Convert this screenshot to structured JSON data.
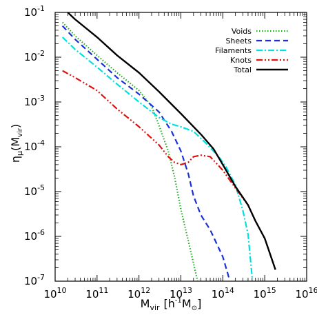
{
  "chart_data": {
    "type": "line",
    "x_scale": "log",
    "y_scale": "log",
    "xlim": [
      10000000000.0,
      1e+16
    ],
    "ylim": [
      1e-07,
      0.1
    ],
    "xlabel": {
      "main": "M",
      "sub": "vir",
      "bracket_open": "[h",
      "sup": "-1",
      "unit": "M",
      "unit_sub": "⊙",
      "bracket_close": "]"
    },
    "ylabel": {
      "main": "η",
      "sub": "μ",
      "paren_open": "(M",
      "paren_sub": "vir",
      "paren_close": ")"
    },
    "x_ticks": [
      {
        "value": 10000000000.0,
        "base": "10",
        "exp": "10"
      },
      {
        "value": 100000000000.0,
        "base": "10",
        "exp": "11"
      },
      {
        "value": 1000000000000.0,
        "base": "10",
        "exp": "12"
      },
      {
        "value": 10000000000000.0,
        "base": "10",
        "exp": "13"
      },
      {
        "value": 100000000000000.0,
        "base": "10",
        "exp": "14"
      },
      {
        "value": 1000000000000000.0,
        "base": "10",
        "exp": "15"
      },
      {
        "value": 1e+16,
        "base": "10",
        "exp": "16"
      }
    ],
    "y_ticks": [
      {
        "value": 1e-07,
        "base": "10",
        "exp": "-7"
      },
      {
        "value": 1e-06,
        "base": "10",
        "exp": "-6"
      },
      {
        "value": 1e-05,
        "base": "10",
        "exp": "-5"
      },
      {
        "value": 0.0001,
        "base": "10",
        "exp": "-4"
      },
      {
        "value": 0.001,
        "base": "10",
        "exp": "-3"
      },
      {
        "value": 0.01,
        "base": "10",
        "exp": "-2"
      },
      {
        "value": 0.1,
        "base": "10",
        "exp": "-1"
      }
    ],
    "grid": false,
    "legend_position": "top-right",
    "series": [
      {
        "name": "Voids",
        "color": "#22aa22",
        "dash": "dotted",
        "x": [
          15000000000.0,
          30000000000.0,
          100000000000.0,
          300000000000.0,
          1000000000000.0,
          2000000000000.0,
          3000000000000.0,
          5000000000000.0,
          7000000000000.0,
          10000000000000.0,
          15000000000000.0,
          20000000000000.0,
          25000000000000.0
        ],
        "y": [
          0.06,
          0.03,
          0.011,
          0.0045,
          0.0018,
          0.0008,
          0.0003,
          8e-05,
          2.2e-05,
          4e-06,
          8e-07,
          2.5e-07,
          1e-07
        ]
      },
      {
        "name": "Sheets",
        "color": "#1a2fd6",
        "dash": "dashed",
        "x": [
          15000000000.0,
          30000000000.0,
          100000000000.0,
          300000000000.0,
          1000000000000.0,
          3000000000000.0,
          6000000000000.0,
          10000000000000.0,
          15000000000000.0,
          20000000000000.0,
          30000000000000.0,
          50000000000000.0,
          100000000000000.0,
          140000000000000.0
        ],
        "y": [
          0.05,
          0.025,
          0.009,
          0.0035,
          0.0015,
          0.0006,
          0.00022,
          8e-05,
          2.5e-05,
          8e-06,
          3e-06,
          1.4e-06,
          3.5e-07,
          1.2e-07
        ]
      },
      {
        "name": "Filaments",
        "color": "#00e0e0",
        "dash": "dashdot",
        "x": [
          15000000000.0,
          30000000000.0,
          100000000000.0,
          300000000000.0,
          1000000000000.0,
          3000000000000.0,
          6000000000000.0,
          10000000000000.0,
          20000000000000.0,
          40000000000000.0,
          80000000000000.0,
          120000000000000.0,
          200000000000000.0,
          300000000000000.0,
          400000000000000.0,
          500000000000000.0
        ],
        "y": [
          0.028,
          0.015,
          0.006,
          0.0025,
          0.001,
          0.00045,
          0.00032,
          0.00028,
          0.00022,
          0.00012,
          6e-05,
          3.5e-05,
          1.4e-05,
          3.8e-06,
          1.1e-06,
          1.2e-07
        ]
      },
      {
        "name": "Knots",
        "color": "#e01010",
        "dash": "dashdotdot",
        "x": [
          15000000000.0,
          30000000000.0,
          100000000000.0,
          300000000000.0,
          1000000000000.0,
          3000000000000.0,
          5000000000000.0,
          7000000000000.0,
          10000000000000.0,
          15000000000000.0,
          20000000000000.0,
          30000000000000.0,
          50000000000000.0,
          100000000000000.0,
          200000000000000.0,
          400000000000000.0,
          600000000000000.0,
          1000000000000000.0,
          1800000000000000.0
        ],
        "y": [
          0.005,
          0.0035,
          0.0018,
          0.0007,
          0.00028,
          0.00011,
          6e-05,
          4.5e-05,
          4e-05,
          4.5e-05,
          6e-05,
          6.5e-05,
          6e-05,
          3e-05,
          1.2e-05,
          5e-06,
          2.2e-06,
          9e-07,
          1.8e-07
        ]
      },
      {
        "name": "Total",
        "color": "#000000",
        "dash": "solid",
        "x": [
          20000000000.0,
          30000000000.0,
          100000000000.0,
          300000000000.0,
          1000000000000.0,
          3000000000000.0,
          10000000000000.0,
          30000000000000.0,
          60000000000000.0,
          100000000000000.0,
          200000000000000.0,
          400000000000000.0,
          600000000000000.0,
          1000000000000000.0,
          1800000000000000.0
        ],
        "y": [
          0.1,
          0.07,
          0.028,
          0.011,
          0.0045,
          0.0017,
          0.00055,
          0.00019,
          9e-05,
          4e-05,
          1.3e-05,
          5e-06,
          2.2e-06,
          9e-07,
          1.8e-07
        ]
      }
    ]
  }
}
